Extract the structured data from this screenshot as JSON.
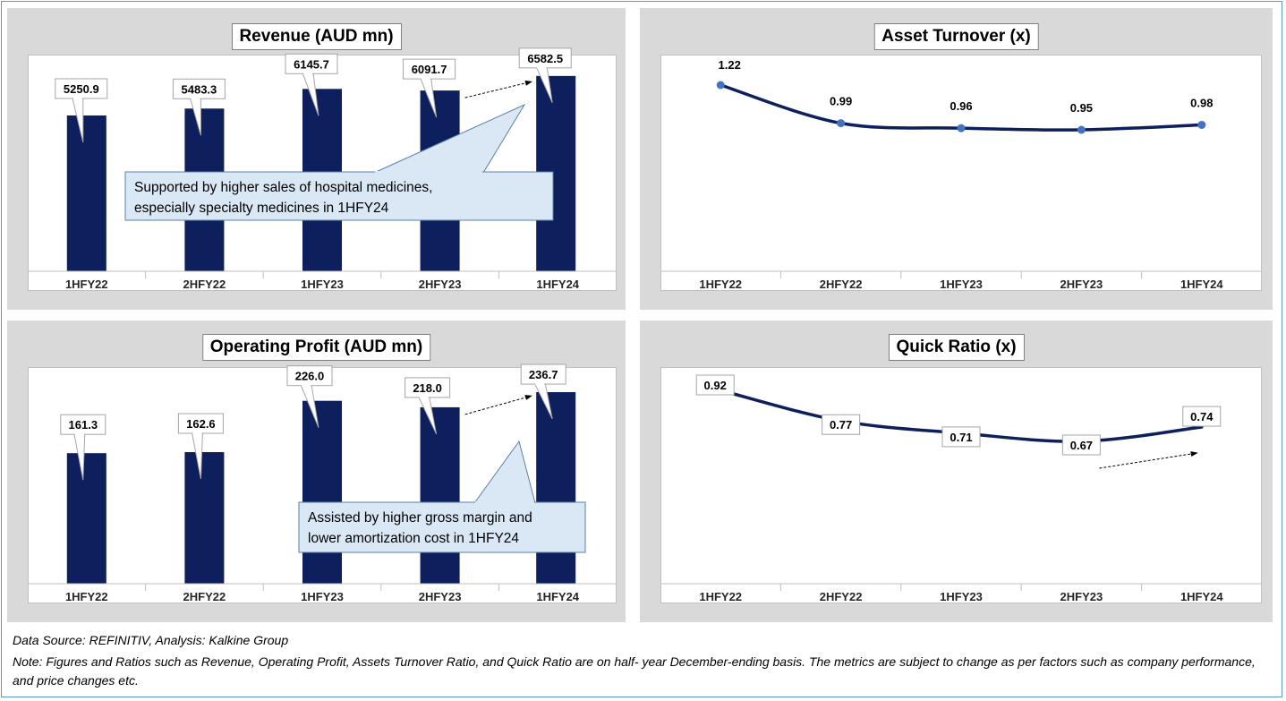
{
  "colors": {
    "bar": "#0d1f5c",
    "line": "#0d1f5c",
    "marker": "#4472c4",
    "callout_fill": "#dae8f6",
    "callout_stroke": "#5b7fa6"
  },
  "chart_data": [
    {
      "id": "revenue",
      "type": "bar",
      "title": "Revenue (AUD mn)",
      "categories": [
        "1HFY22",
        "2HFY22",
        "1HFY23",
        "2HFY23",
        "1HFY24"
      ],
      "values": [
        5250.9,
        5483.3,
        6145.7,
        6091.7,
        6582.5
      ],
      "data_labels": [
        "5250.9",
        "5483.3",
        "6145.7",
        "6091.7",
        "6582.5"
      ],
      "ylim": [
        0,
        7000
      ],
      "grid": false,
      "callout": [
        "Supported by higher sales of hospital medicines,",
        "especially specialty medicines in 1HFY24"
      ]
    },
    {
      "id": "asset-turnover",
      "type": "line",
      "title": "Asset Turnover (x)",
      "categories": [
        "1HFY22",
        "2HFY22",
        "1HFY23",
        "2HFY23",
        "1HFY24"
      ],
      "values": [
        1.22,
        0.99,
        0.96,
        0.95,
        0.98
      ],
      "data_labels": [
        "1.22",
        "0.99",
        "0.96",
        "0.95",
        "0.98"
      ],
      "ylim": [
        0,
        1.4
      ],
      "grid": false
    },
    {
      "id": "operating-profit",
      "type": "bar",
      "title": "Operating Profit (AUD mn)",
      "categories": [
        "1HFY22",
        "2HFY22",
        "1HFY23",
        "2HFY23",
        "1HFY24"
      ],
      "values": [
        161.3,
        162.6,
        226.0,
        218.0,
        236.7
      ],
      "data_labels": [
        "161.3",
        "162.6",
        "226.0",
        "218.0",
        "236.7"
      ],
      "ylim": [
        0,
        250
      ],
      "grid": false,
      "callout": [
        "Assisted by higher gross margin and",
        "lower amortization cost in 1HFY24"
      ]
    },
    {
      "id": "quick-ratio",
      "type": "line",
      "title": "Quick Ratio (x)",
      "categories": [
        "1HFY22",
        "2HFY22",
        "1HFY23",
        "2HFY23",
        "1HFY24"
      ],
      "values": [
        0.92,
        0.77,
        0.71,
        0.67,
        0.74
      ],
      "data_labels": [
        "0.92",
        "0.77",
        "0.71",
        "0.67",
        "0.74"
      ],
      "ylim": [
        0,
        1.0
      ],
      "grid": false
    }
  ],
  "footer": {
    "source": "Data Source: REFINITIV, Analysis: Kalkine Group",
    "note": "Note: Figures and Ratios such as Revenue, Operating Profit, Assets Turnover Ratio, and Quick Ratio are on half- year December-ending basis. The metrics are subject to change as per factors such as company performance, and price changes etc."
  }
}
